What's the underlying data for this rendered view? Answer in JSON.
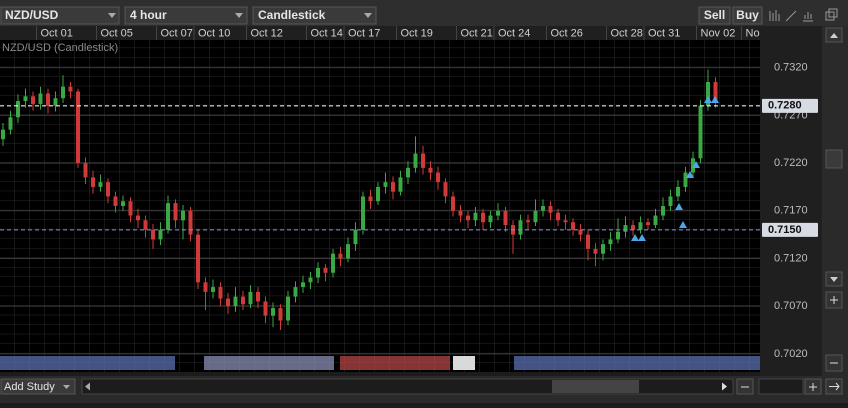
{
  "toolbar": {
    "symbol": "NZD/USD",
    "interval": "4 hour",
    "chart_style": "Candlestick",
    "sell": "Sell",
    "buy": "Buy"
  },
  "chart_data": {
    "type": "candlestick",
    "title": "NZD/USD (Candlestick)",
    "categories": [
      null,
      null,
      null,
      null,
      null,
      "Oct 01",
      null,
      null,
      null,
      null,
      null,
      null,
      null,
      "Oct 05",
      null,
      null,
      null,
      null,
      null,
      null,
      null,
      "Oct 07",
      null,
      null,
      null,
      null,
      "Oct 10",
      null,
      null,
      null,
      null,
      null,
      null,
      "Oct 12",
      null,
      null,
      null,
      null,
      null,
      null,
      null,
      "Oct 14",
      null,
      null,
      null,
      null,
      "Oct 17",
      null,
      null,
      null,
      null,
      null,
      null,
      "Oct 19",
      null,
      null,
      null,
      null,
      null,
      null,
      null,
      "Oct 21",
      null,
      null,
      null,
      null,
      "Oct 24",
      null,
      null,
      null,
      null,
      null,
      null,
      "Oct 26",
      null,
      null,
      null,
      null,
      null,
      null,
      null,
      "Oct 28",
      null,
      null,
      null,
      null,
      "Oct 31",
      null,
      null,
      null,
      null,
      null,
      null,
      "Nov 02",
      null,
      null,
      null,
      null,
      null,
      "No",
      null
    ],
    "open": [
      0.7245,
      0.7255,
      0.7268,
      0.7285,
      0.729,
      0.7282,
      0.7293,
      0.728,
      0.7288,
      0.73,
      0.7295,
      0.722,
      0.7205,
      0.7195,
      0.72,
      0.7185,
      0.7175,
      0.718,
      0.7165,
      0.716,
      0.715,
      0.714,
      0.715,
      0.7178,
      0.716,
      0.717,
      0.7145,
      0.7095,
      0.7085,
      0.709,
      0.7078,
      0.707,
      0.708,
      0.7072,
      0.7085,
      0.7075,
      0.706,
      0.7068,
      0.7055,
      0.708,
      0.709,
      0.7095,
      0.71,
      0.711,
      0.7105,
      0.7125,
      0.712,
      0.7135,
      0.715,
      0.7185,
      0.718,
      0.7195,
      0.72,
      0.719,
      0.7205,
      0.7215,
      0.723,
      0.7215,
      0.721,
      0.72,
      0.7185,
      0.717,
      0.7165,
      0.716,
      0.7168,
      0.7158,
      0.7165,
      0.717,
      0.7155,
      0.7145,
      0.716,
      0.7158,
      0.717,
      0.7175,
      0.7168,
      0.716,
      0.7158,
      0.715,
      0.7145,
      0.713,
      0.7125,
      0.7135,
      0.714,
      0.7148,
      0.7155,
      0.715,
      0.7158,
      0.7155,
      0.7165,
      0.7175,
      0.7185,
      0.7195,
      0.721,
      0.7225,
      0.728,
      0.7305,
      null,
      null,
      null,
      null,
      null
    ],
    "high": [
      0.7262,
      0.7275,
      0.7292,
      0.7298,
      0.7295,
      0.73,
      0.7298,
      0.7295,
      0.7312,
      0.7305,
      0.7298,
      0.7226,
      0.7212,
      0.7208,
      0.7204,
      0.719,
      0.7186,
      0.7184,
      0.7172,
      0.7165,
      0.7156,
      0.7158,
      0.7186,
      0.7182,
      0.7176,
      0.7174,
      0.715,
      0.71,
      0.7098,
      0.7095,
      0.7084,
      0.709,
      0.7086,
      0.7092,
      0.709,
      0.708,
      0.7074,
      0.7072,
      0.7086,
      0.7096,
      0.7102,
      0.7106,
      0.7116,
      0.7114,
      0.713,
      0.7132,
      0.7142,
      0.7158,
      0.719,
      0.7192,
      0.72,
      0.721,
      0.7206,
      0.7212,
      0.7222,
      0.7248,
      0.7238,
      0.7222,
      0.7216,
      0.7204,
      0.719,
      0.7176,
      0.717,
      0.7174,
      0.7172,
      0.717,
      0.7178,
      0.7174,
      0.716,
      0.7166,
      0.7166,
      0.7182,
      0.7182,
      0.718,
      0.7172,
      0.7166,
      0.7162,
      0.7156,
      0.715,
      0.7136,
      0.714,
      0.7148,
      0.7162,
      0.7164,
      0.716,
      0.7164,
      0.7162,
      0.7172,
      0.7184,
      0.7192,
      0.7202,
      0.7216,
      0.7232,
      0.7286,
      0.7318,
      0.731,
      null,
      null,
      null,
      null,
      null
    ],
    "low": [
      0.7238,
      0.725,
      0.7262,
      0.7278,
      0.7275,
      0.7276,
      0.7272,
      0.7274,
      0.7283,
      0.7288,
      0.7215,
      0.7198,
      0.7188,
      0.719,
      0.7178,
      0.7168,
      0.717,
      0.7158,
      0.7152,
      0.7142,
      0.713,
      0.7134,
      0.7146,
      0.7152,
      0.714,
      0.7138,
      0.7088,
      0.7066,
      0.7078,
      0.707,
      0.7062,
      0.7064,
      0.7066,
      0.7068,
      0.7068,
      0.7052,
      0.7048,
      0.7045,
      0.705,
      0.7074,
      0.7084,
      0.7088,
      0.7094,
      0.7096,
      0.71,
      0.7112,
      0.7116,
      0.7128,
      0.7145,
      0.7172,
      0.7176,
      0.7188,
      0.7182,
      0.7186,
      0.7198,
      0.721,
      0.7208,
      0.7202,
      0.7192,
      0.7178,
      0.7164,
      0.7158,
      0.7152,
      0.7154,
      0.715,
      0.7152,
      0.716,
      0.7148,
      0.7125,
      0.714,
      0.715,
      0.7154,
      0.7164,
      0.716,
      0.7154,
      0.715,
      0.7144,
      0.7138,
      0.7118,
      0.7112,
      0.7118,
      0.7128,
      0.7136,
      0.7142,
      0.7144,
      0.7146,
      0.715,
      0.7152,
      0.716,
      0.717,
      0.718,
      0.719,
      0.7205,
      0.722,
      0.7275,
      0.7278,
      null,
      null,
      null,
      null,
      null
    ],
    "close": [
      0.7255,
      0.7268,
      0.7285,
      0.729,
      0.7282,
      0.7293,
      0.728,
      0.7288,
      0.73,
      0.7295,
      0.722,
      0.7205,
      0.7195,
      0.72,
      0.7185,
      0.7175,
      0.718,
      0.7165,
      0.716,
      0.715,
      0.714,
      0.715,
      0.7178,
      0.716,
      0.717,
      0.7145,
      0.7095,
      0.7085,
      0.709,
      0.7078,
      0.707,
      0.708,
      0.7072,
      0.7085,
      0.7075,
      0.706,
      0.7068,
      0.7055,
      0.708,
      0.709,
      0.7095,
      0.71,
      0.711,
      0.7105,
      0.7125,
      0.712,
      0.7135,
      0.715,
      0.7185,
      0.718,
      0.7195,
      0.72,
      0.719,
      0.7205,
      0.7215,
      0.723,
      0.7215,
      0.721,
      0.72,
      0.7185,
      0.717,
      0.7165,
      0.716,
      0.7168,
      0.7158,
      0.7165,
      0.717,
      0.7155,
      0.7145,
      0.716,
      0.7158,
      0.717,
      0.7175,
      0.7168,
      0.716,
      0.7158,
      0.715,
      0.7145,
      0.713,
      0.7125,
      0.7135,
      0.714,
      0.7148,
      0.7155,
      0.715,
      0.7158,
      0.7155,
      0.7165,
      0.7175,
      0.7185,
      0.7195,
      0.721,
      0.7225,
      0.728,
      0.7305,
      0.7285,
      null,
      null,
      null,
      null,
      null
    ],
    "ylim": [
      0.7001,
      0.7349
    ],
    "yticks": [
      {
        "value": 0.702,
        "label": "0.7020"
      },
      {
        "value": 0.707,
        "label": "0.7070"
      },
      {
        "value": 0.712,
        "label": "0.7120"
      },
      {
        "value": 0.717,
        "label": "0.7170"
      },
      {
        "value": 0.722,
        "label": "0.7220"
      },
      {
        "value": 0.727,
        "label": "0.7270"
      },
      {
        "value": 0.732,
        "label": "0.7320"
      }
    ],
    "price_lines": [
      {
        "value": 0.728,
        "label": "0.7280",
        "color": "#ffffff"
      },
      {
        "value": 0.715,
        "label": "0.7150",
        "color": "#7f8fe0"
      }
    ],
    "up_color": "#3aa845",
    "down_color": "#d23a3a",
    "grid": true
  },
  "footer": {
    "add_study": "Add Study"
  }
}
